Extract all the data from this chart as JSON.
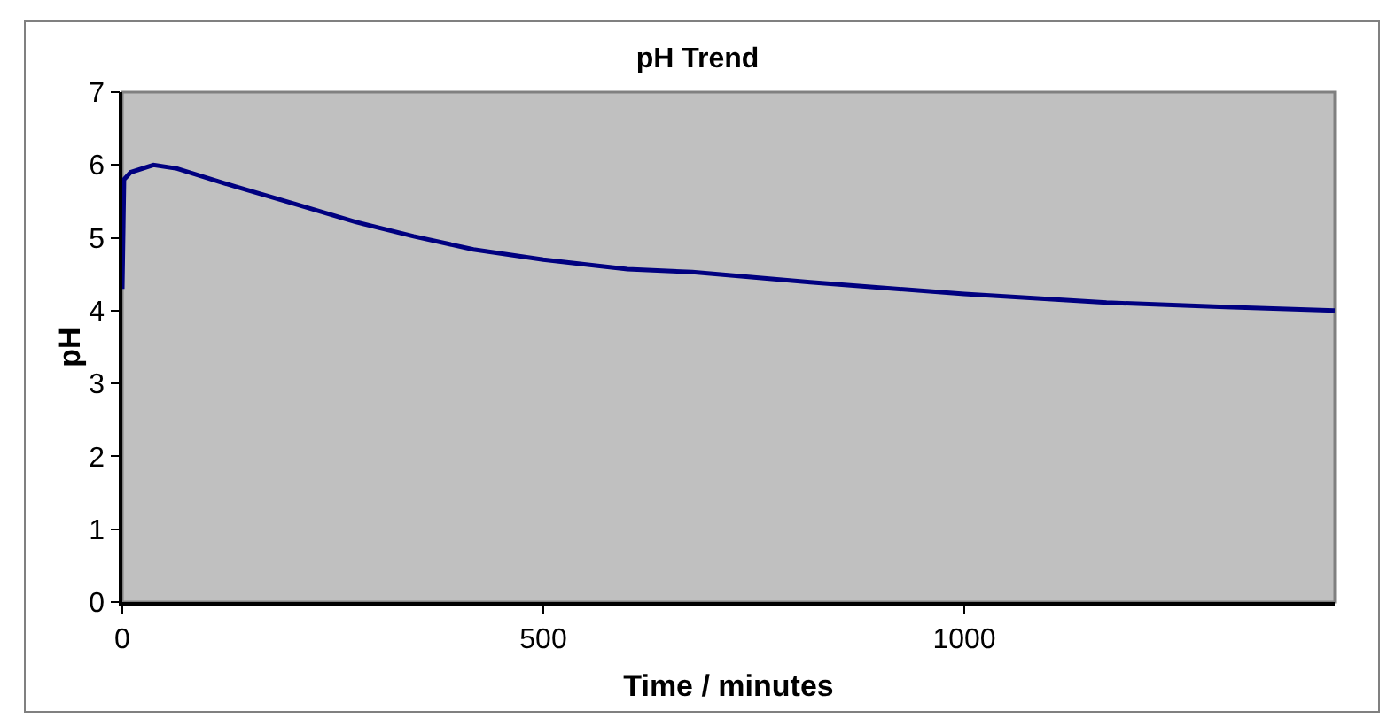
{
  "chart_data": {
    "type": "line",
    "title": "pH Trend",
    "xlabel": "Time / minutes",
    "ylabel": "pH",
    "x": [
      0,
      2,
      10,
      37,
      65,
      135,
      206,
      276,
      346,
      417,
      500,
      560,
      600,
      677,
      817,
      1000,
      1169,
      1310,
      1440
    ],
    "series": [
      {
        "color": "#000080",
        "values": [
          4.3,
          5.8,
          5.9,
          6.0,
          5.95,
          5.7,
          5.46,
          5.22,
          5.02,
          4.84,
          4.7,
          4.62,
          4.57,
          4.53,
          4.39,
          4.23,
          4.11,
          4.05,
          4.0
        ]
      }
    ],
    "xlim": [
      0,
      1440
    ],
    "xticks": [
      0,
      500,
      1000
    ],
    "ylim": [
      0,
      7
    ],
    "yticks": [
      0,
      1,
      2,
      3,
      4,
      5,
      6,
      7
    ],
    "grid": false,
    "marker": "none",
    "line_style": "solid"
  }
}
